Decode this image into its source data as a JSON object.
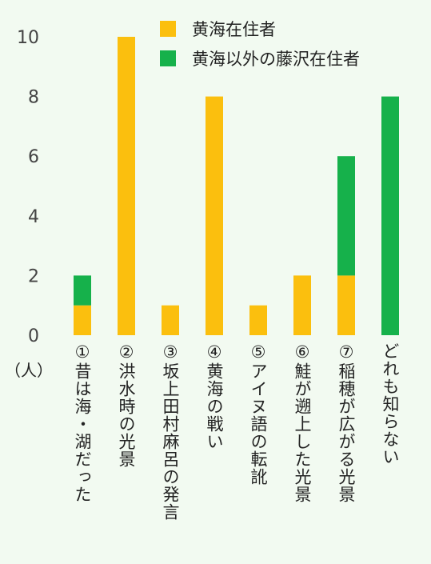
{
  "chart_data": {
    "type": "bar",
    "stacked": true,
    "categories": [
      "①昔は海・湖だった",
      "②洪水時の光景",
      "③坂上田村麻呂の発言",
      "④黄海の戦い",
      "⑤アイヌ語の転訛",
      "⑥鮭が遡上した光景",
      "⑦稲穂が広がる光景",
      "どれも知らない"
    ],
    "series": [
      {
        "name": "黄海在住者",
        "color": "#fbbf0e",
        "values": [
          1,
          10,
          1,
          8,
          1,
          2,
          2,
          0
        ]
      },
      {
        "name": "黄海以外の藤沢在住者",
        "color": "#16b14b",
        "values": [
          1,
          0,
          0,
          0,
          0,
          0,
          4,
          8
        ]
      }
    ],
    "unit": "（人）",
    "yticks": [
      "0",
      "2",
      "4",
      "6",
      "8",
      "10"
    ],
    "ylim": [
      0,
      10
    ],
    "legend_position": "top-right",
    "grid": false
  }
}
